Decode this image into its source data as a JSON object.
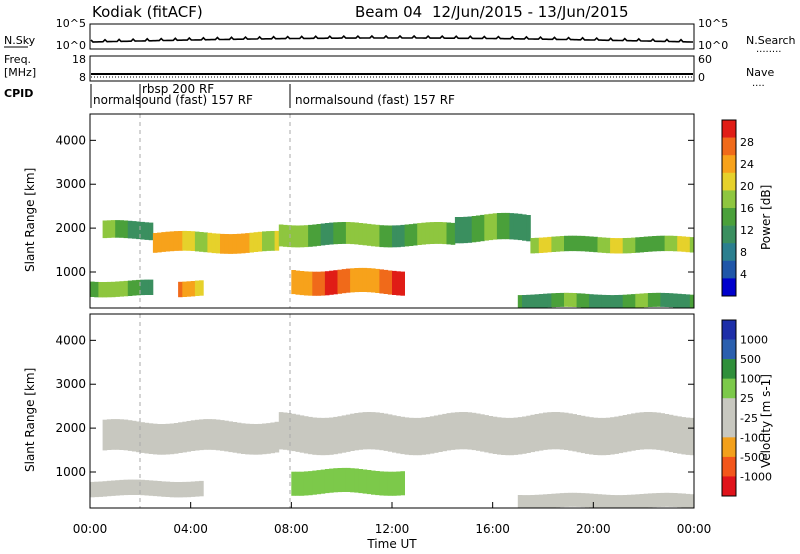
{
  "header": {
    "station": "Kodiak (fitACF)",
    "beam": "Beam 04",
    "dates": "12/Jun/2015 - 13/Jun/2015"
  },
  "left_labels": {
    "nsky": "N.Sky",
    "freq": "Freq.",
    "freq_unit": "[MHz]",
    "cpid": "CPID"
  },
  "right_labels": {
    "nsearch": "N.Search",
    "nave": "Nave",
    "dots": "........",
    "dots_short": "...."
  },
  "noise_axis": {
    "left_ticks": [
      "10^5",
      "10^0"
    ],
    "right_ticks": [
      "10^5",
      "10^0"
    ]
  },
  "freq_axis": {
    "left_ticks": [
      "18",
      "8"
    ],
    "right_ticks": [
      "60",
      "0"
    ]
  },
  "cpid_labels": {
    "first": "normalsound (fast) 157 RF",
    "rbsp": "rbsp 200 RF",
    "second": "normalsound (fast) 157 RF"
  },
  "chart_data": [
    {
      "type": "heatmap",
      "name": "power",
      "ylabel": "Slant Range [km]",
      "xlabel": "",
      "ylim": [
        180,
        4600
      ],
      "yticks": [
        "1000",
        "2000",
        "3000",
        "4000"
      ],
      "colorbar": {
        "label": "Power [dB]",
        "ticks": [
          "28",
          "24",
          "20",
          "16",
          "12",
          "8",
          "4"
        ],
        "range": [
          0,
          30
        ]
      },
      "bands": [
        {
          "t_start": 0.5,
          "t_end": 2.5,
          "r_low": 1750,
          "r_high": 2150,
          "value": 12
        },
        {
          "t_start": 2.5,
          "t_end": 7.5,
          "r_low": 1450,
          "r_high": 1900,
          "value": 20
        },
        {
          "t_start": 7.5,
          "t_end": 14.5,
          "r_low": 1600,
          "r_high": 2100,
          "value": 14
        },
        {
          "t_start": 14.5,
          "t_end": 17.5,
          "r_low": 1700,
          "r_high": 2300,
          "value": 12
        },
        {
          "t_start": 17.5,
          "t_end": 24.0,
          "r_low": 1450,
          "r_high": 1800,
          "value": 15
        },
        {
          "t_start": 8.0,
          "t_end": 12.5,
          "r_low": 500,
          "r_high": 1050,
          "value": 24
        },
        {
          "t_start": 0.0,
          "t_end": 2.5,
          "r_low": 450,
          "r_high": 800,
          "value": 14
        },
        {
          "t_start": 3.5,
          "t_end": 4.5,
          "r_low": 450,
          "r_high": 800,
          "value": 22
        },
        {
          "t_start": 17.0,
          "t_end": 24.0,
          "r_low": 180,
          "r_high": 500,
          "value": 12
        }
      ]
    },
    {
      "type": "heatmap",
      "name": "velocity",
      "ylabel": "Slant Range [km]",
      "xlabel": "Time UT",
      "ylim": [
        180,
        4600
      ],
      "yticks": [
        "1000",
        "2000",
        "3000",
        "4000"
      ],
      "xticks": [
        "00:00",
        "04:00",
        "08:00",
        "12:00",
        "16:00",
        "20:00",
        "00:00"
      ],
      "colorbar": {
        "label": "Velocity [m s-1]",
        "ticks": [
          "1000",
          "500",
          "100",
          "25",
          "-25",
          "-100",
          "-500",
          "-1000"
        ],
        "range": [
          -1000,
          1000
        ]
      },
      "bands": [
        {
          "t_start": 0.5,
          "t_end": 7.5,
          "r_low": 1450,
          "r_high": 2150,
          "value": 0
        },
        {
          "t_start": 7.5,
          "t_end": 24.0,
          "r_low": 1450,
          "r_high": 2300,
          "value": 0
        },
        {
          "t_start": 8.0,
          "t_end": 12.5,
          "r_low": 500,
          "r_high": 1050,
          "value": 100
        },
        {
          "t_start": 0.0,
          "t_end": 4.5,
          "r_low": 450,
          "r_high": 800,
          "value": 0
        },
        {
          "t_start": 17.0,
          "t_end": 24.0,
          "r_low": 180,
          "r_high": 500,
          "value": 0
        }
      ]
    }
  ]
}
